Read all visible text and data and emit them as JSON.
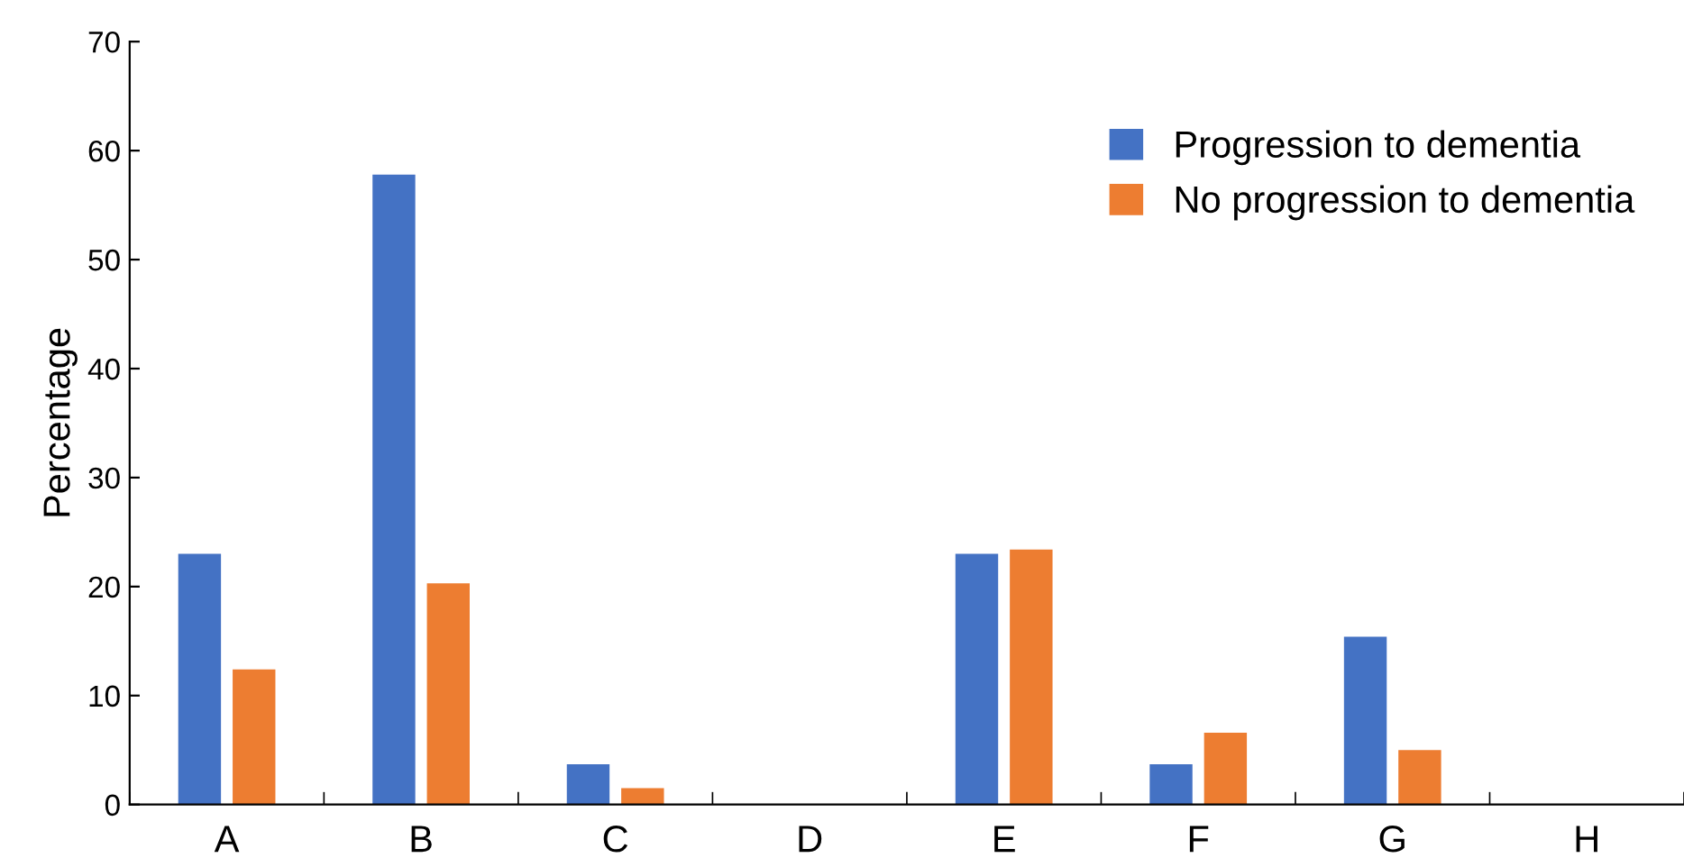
{
  "chart_data": {
    "type": "bar",
    "ylabel": "Percentage",
    "categories": [
      "A",
      "B",
      "C",
      "D",
      "E",
      "F",
      "G",
      "H"
    ],
    "series": [
      {
        "name": "Progression to dementia",
        "color": "#4472c4",
        "values": [
          23.0,
          57.8,
          3.7,
          0,
          23.0,
          3.7,
          15.4,
          0
        ]
      },
      {
        "name": "No progression to dementia",
        "color": "#ed7d31",
        "values": [
          12.4,
          20.3,
          1.5,
          0,
          23.4,
          6.6,
          5.0,
          0
        ]
      }
    ],
    "ylim": [
      0,
      70
    ],
    "yticks": [
      0,
      10,
      20,
      30,
      40,
      50,
      60,
      70
    ],
    "grid": false,
    "legend": "top right"
  }
}
